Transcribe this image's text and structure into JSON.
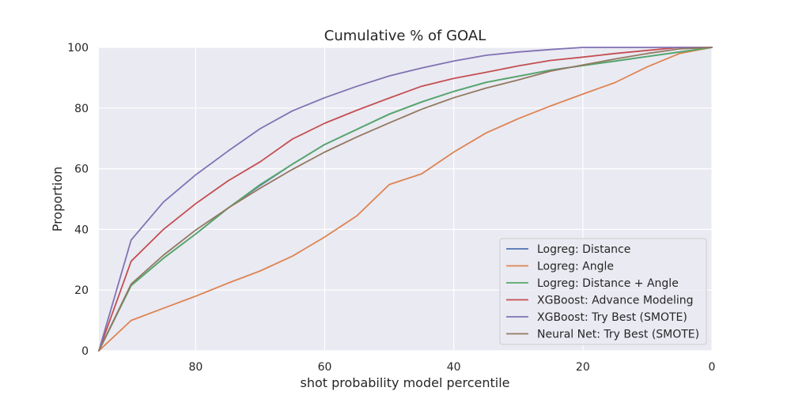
{
  "chart_data": {
    "type": "line",
    "title": "Cumulative % of GOAL",
    "xlabel": "shot probability model percentile",
    "ylabel": "Proportion",
    "xlim": [
      95,
      0
    ],
    "ylim": [
      0,
      100
    ],
    "x_reversed": true,
    "xticks": [
      80,
      60,
      40,
      20,
      0
    ],
    "yticks": [
      0,
      20,
      40,
      60,
      80,
      100
    ],
    "grid": true,
    "legend_position": "lower-right",
    "x": [
      95,
      90,
      85,
      80,
      75,
      70,
      65,
      60,
      55,
      50,
      45,
      40,
      35,
      30,
      25,
      20,
      15,
      10,
      5,
      0
    ],
    "series": [
      {
        "name": "Logreg: Distance",
        "color": "#4c72b0",
        "values": [
          0,
          21.5,
          30.5,
          38.5,
          47,
          54.5,
          61.5,
          68,
          73,
          78,
          82,
          85.5,
          88.5,
          90.5,
          92.5,
          94,
          95.5,
          97,
          98.5,
          100
        ]
      },
      {
        "name": "Logreg: Angle",
        "color": "#dd8452",
        "values": [
          0,
          10,
          14,
          18,
          22.3,
          26.3,
          31.2,
          37.5,
          44.5,
          54.8,
          58.3,
          65.5,
          71.8,
          76.5,
          80.7,
          84.6,
          88.4,
          93.6,
          98,
          100
        ]
      },
      {
        "name": "Logreg: Distance + Angle",
        "color": "#55a868",
        "values": [
          0,
          21.5,
          30.5,
          38.5,
          47,
          54.8,
          61.5,
          68,
          73,
          78,
          82,
          85.5,
          88.5,
          90.5,
          92.5,
          94,
          95.5,
          97,
          98.5,
          100
        ]
      },
      {
        "name": "XGBoost: Advance Modeling",
        "color": "#c44e52",
        "values": [
          0,
          29.5,
          40,
          48.5,
          56,
          62.3,
          69.8,
          75,
          79.3,
          83.3,
          87.2,
          89.8,
          91.8,
          93.9,
          95.7,
          96.8,
          98,
          99,
          100,
          100
        ]
      },
      {
        "name": "XGBoost: Try Best (SMOTE)",
        "color": "#8172b3",
        "values": [
          0,
          36.5,
          49,
          58,
          65.8,
          73.2,
          79.1,
          83.4,
          87.2,
          90.6,
          93.2,
          95.5,
          97.4,
          98.5,
          99.3,
          100,
          100,
          100,
          100,
          100
        ]
      },
      {
        "name": "Neural Net: Try Best (SMOTE)",
        "color": "#937860",
        "values": [
          0,
          22,
          31.5,
          39.8,
          47,
          53.6,
          59.8,
          65.5,
          70.5,
          75.1,
          79.6,
          83.4,
          86.6,
          89.3,
          92.2,
          94.2,
          96.2,
          98,
          99.5,
          100
        ]
      }
    ]
  }
}
